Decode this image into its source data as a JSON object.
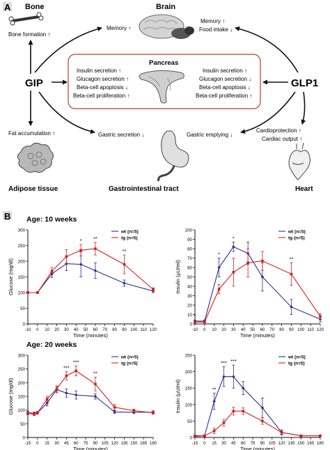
{
  "panelA": {
    "letter": "A",
    "bone": {
      "label": "Bone",
      "effect": "Bone formation ↑"
    },
    "brain": {
      "label": "Brain",
      "left_effect": "Memory ↑",
      "right_effects": [
        "Memory ↑",
        "Food intake ↓"
      ]
    },
    "gip": "GIP",
    "glp1": "GLP1",
    "pancreas": {
      "label": "Pancreas",
      "left_effects": [
        "Insulin secretion ↑",
        "Glucagon secretion ↑",
        "Beta-cell apoptosis ↓",
        "Beta-cell proliferation ↑"
      ],
      "right_effects": [
        "Insulin secretion ↑",
        "Glucagon secretion ↓",
        "Beta-cell apoptosis ↓",
        "Beta-cell proliferation ↑"
      ]
    },
    "adipose": {
      "label": "Adipose tissue",
      "effect": "Fat accumulation ↑"
    },
    "gi": {
      "label": "Gastrointestinal tract",
      "left_effect": "Gastric secretion ↓",
      "right_effect": "Gastric emptying ↓"
    },
    "heart": {
      "label": "Heart",
      "effects": [
        "Cardioprotection ↑",
        "Cardiac output ↑"
      ]
    }
  },
  "panelB": {
    "letter": "B",
    "age10": "Age: 10 weeks",
    "age20": "Age: 20 weeks"
  },
  "colors": {
    "wt": "#2b2d8f",
    "tg": "#d42020",
    "box": "#c0392b"
  },
  "chart_data": [
    {
      "type": "line",
      "ylabel": "Glucose (mg/dl)",
      "xlabel": "Time (minutes)",
      "xlim": [
        -10,
        120
      ],
      "ylim": [
        0,
        300
      ],
      "xticks": [
        -10,
        0,
        10,
        20,
        30,
        40,
        50,
        60,
        70,
        80,
        90,
        100,
        110,
        120
      ],
      "yticks": [
        0,
        50,
        100,
        150,
        200,
        250,
        300
      ],
      "legend": [
        "wt (n=5)",
        "tg (n=5)"
      ],
      "series": [
        {
          "name": "wt (n=5)",
          "color": "#2b2d8f",
          "x": [
            -10,
            0,
            15,
            30,
            45,
            60,
            90,
            120
          ],
          "y": [
            100,
            100,
            160,
            192,
            190,
            170,
            130,
            105
          ],
          "err": [
            3,
            3,
            12,
            22,
            40,
            25,
            10,
            5
          ]
        },
        {
          "name": "tg (n=5)",
          "color": "#d42020",
          "x": [
            -10,
            0,
            15,
            30,
            45,
            60,
            90,
            120
          ],
          "y": [
            100,
            100,
            168,
            215,
            235,
            240,
            190,
            110
          ],
          "err": [
            3,
            3,
            12,
            22,
            18,
            20,
            30,
            5
          ]
        }
      ],
      "annotations": [
        {
          "x": 45,
          "text": "*"
        },
        {
          "x": 60,
          "text": "**"
        },
        {
          "x": 90,
          "text": "**"
        }
      ]
    },
    {
      "type": "line",
      "ylabel": "Insulin (μU/ml)",
      "xlabel": "Time (minutes)",
      "xlim": [
        -10,
        120
      ],
      "ylim": [
        0,
        100
      ],
      "xticks": [
        -10,
        0,
        10,
        20,
        30,
        40,
        50,
        60,
        70,
        80,
        90,
        100,
        110,
        120
      ],
      "yticks": [
        0,
        10,
        20,
        30,
        40,
        50,
        60,
        70,
        80,
        90,
        100
      ],
      "legend": [
        "wt (n=5)",
        "tg (n=5)"
      ],
      "series": [
        {
          "name": "wt (n=5)",
          "color": "#2b2d8f",
          "x": [
            -10,
            0,
            15,
            30,
            45,
            60,
            90,
            120
          ],
          "y": [
            3,
            3,
            60,
            82,
            75,
            50,
            18,
            5
          ],
          "err": [
            1,
            1,
            10,
            5,
            12,
            15,
            8,
            3
          ]
        },
        {
          "name": "tg (n=5)",
          "color": "#d42020",
          "x": [
            -10,
            0,
            15,
            30,
            45,
            60,
            90,
            120
          ],
          "y": [
            2,
            2,
            37,
            55,
            65,
            67,
            53,
            8
          ],
          "err": [
            1,
            1,
            5,
            15,
            15,
            10,
            12,
            3
          ]
        }
      ],
      "annotations": [
        {
          "x": -10,
          "text": "*"
        },
        {
          "x": 15,
          "text": "*"
        },
        {
          "x": 30,
          "text": "*"
        },
        {
          "x": 90,
          "text": "**"
        }
      ]
    },
    {
      "type": "line",
      "ylabel": "Glucose (mg/dl)",
      "xlabel": "Time (minutes)",
      "xlim": [
        -15,
        180
      ],
      "ylim": [
        0,
        300
      ],
      "xticks": [
        -15,
        0,
        15,
        30,
        45,
        60,
        75,
        90,
        105,
        120,
        135,
        150,
        165,
        180
      ],
      "yticks": [
        0,
        50,
        100,
        150,
        200,
        250,
        300
      ],
      "legend": [
        "wt (n=5)",
        "tg (n=5)"
      ],
      "series": [
        {
          "name": "wt (n=5)",
          "color": "#2b2d8f",
          "x": [
            -15,
            -5,
            0,
            15,
            30,
            45,
            60,
            90,
            120,
            150,
            180
          ],
          "y": [
            90,
            88,
            90,
            125,
            175,
            162,
            155,
            150,
            93,
            92,
            92
          ],
          "err": [
            5,
            5,
            5,
            10,
            12,
            15,
            15,
            10,
            5,
            5,
            5
          ]
        },
        {
          "name": "tg (n=5)",
          "color": "#d42020",
          "x": [
            -15,
            -5,
            0,
            15,
            30,
            45,
            60,
            90,
            120,
            150,
            180
          ],
          "y": [
            88,
            85,
            90,
            140,
            178,
            225,
            243,
            195,
            110,
            98,
            90
          ],
          "err": [
            5,
            5,
            5,
            10,
            10,
            15,
            18,
            25,
            10,
            5,
            5
          ]
        }
      ],
      "annotations": [
        {
          "x": 45,
          "text": "***"
        },
        {
          "x": 60,
          "text": "***"
        },
        {
          "x": 90,
          "text": "**"
        }
      ]
    },
    {
      "type": "line",
      "ylabel": "Insulin (μU/ml)",
      "xlabel": "Time (minutes)",
      "xlim": [
        -15,
        180
      ],
      "ylim": [
        0,
        250
      ],
      "xticks": [
        -15,
        0,
        15,
        30,
        45,
        60,
        75,
        90,
        105,
        120,
        135,
        150,
        165,
        180
      ],
      "yticks": [
        0,
        50,
        100,
        150,
        200,
        250
      ],
      "legend": [
        "wt (n=5)",
        "tg (n=5)"
      ],
      "series": [
        {
          "name": "wt (n=5)",
          "color": "#2b2d8f",
          "x": [
            -15,
            0,
            15,
            30,
            45,
            60,
            90,
            120,
            150,
            180
          ],
          "y": [
            5,
            5,
            110,
            185,
            185,
            150,
            90,
            15,
            5,
            5
          ],
          "err": [
            2,
            2,
            25,
            30,
            35,
            20,
            30,
            8,
            2,
            2
          ]
        },
        {
          "name": "tg (n=5)",
          "color": "#d42020",
          "x": [
            -15,
            0,
            15,
            30,
            45,
            60,
            90,
            120,
            150,
            180
          ],
          "y": [
            3,
            5,
            20,
            45,
            80,
            80,
            50,
            15,
            5,
            5
          ],
          "err": [
            2,
            2,
            8,
            10,
            12,
            10,
            10,
            5,
            2,
            2
          ]
        }
      ],
      "annotations": [
        {
          "x": 15,
          "text": "**"
        },
        {
          "x": 30,
          "text": "***"
        },
        {
          "x": 45,
          "text": "***"
        }
      ]
    }
  ]
}
